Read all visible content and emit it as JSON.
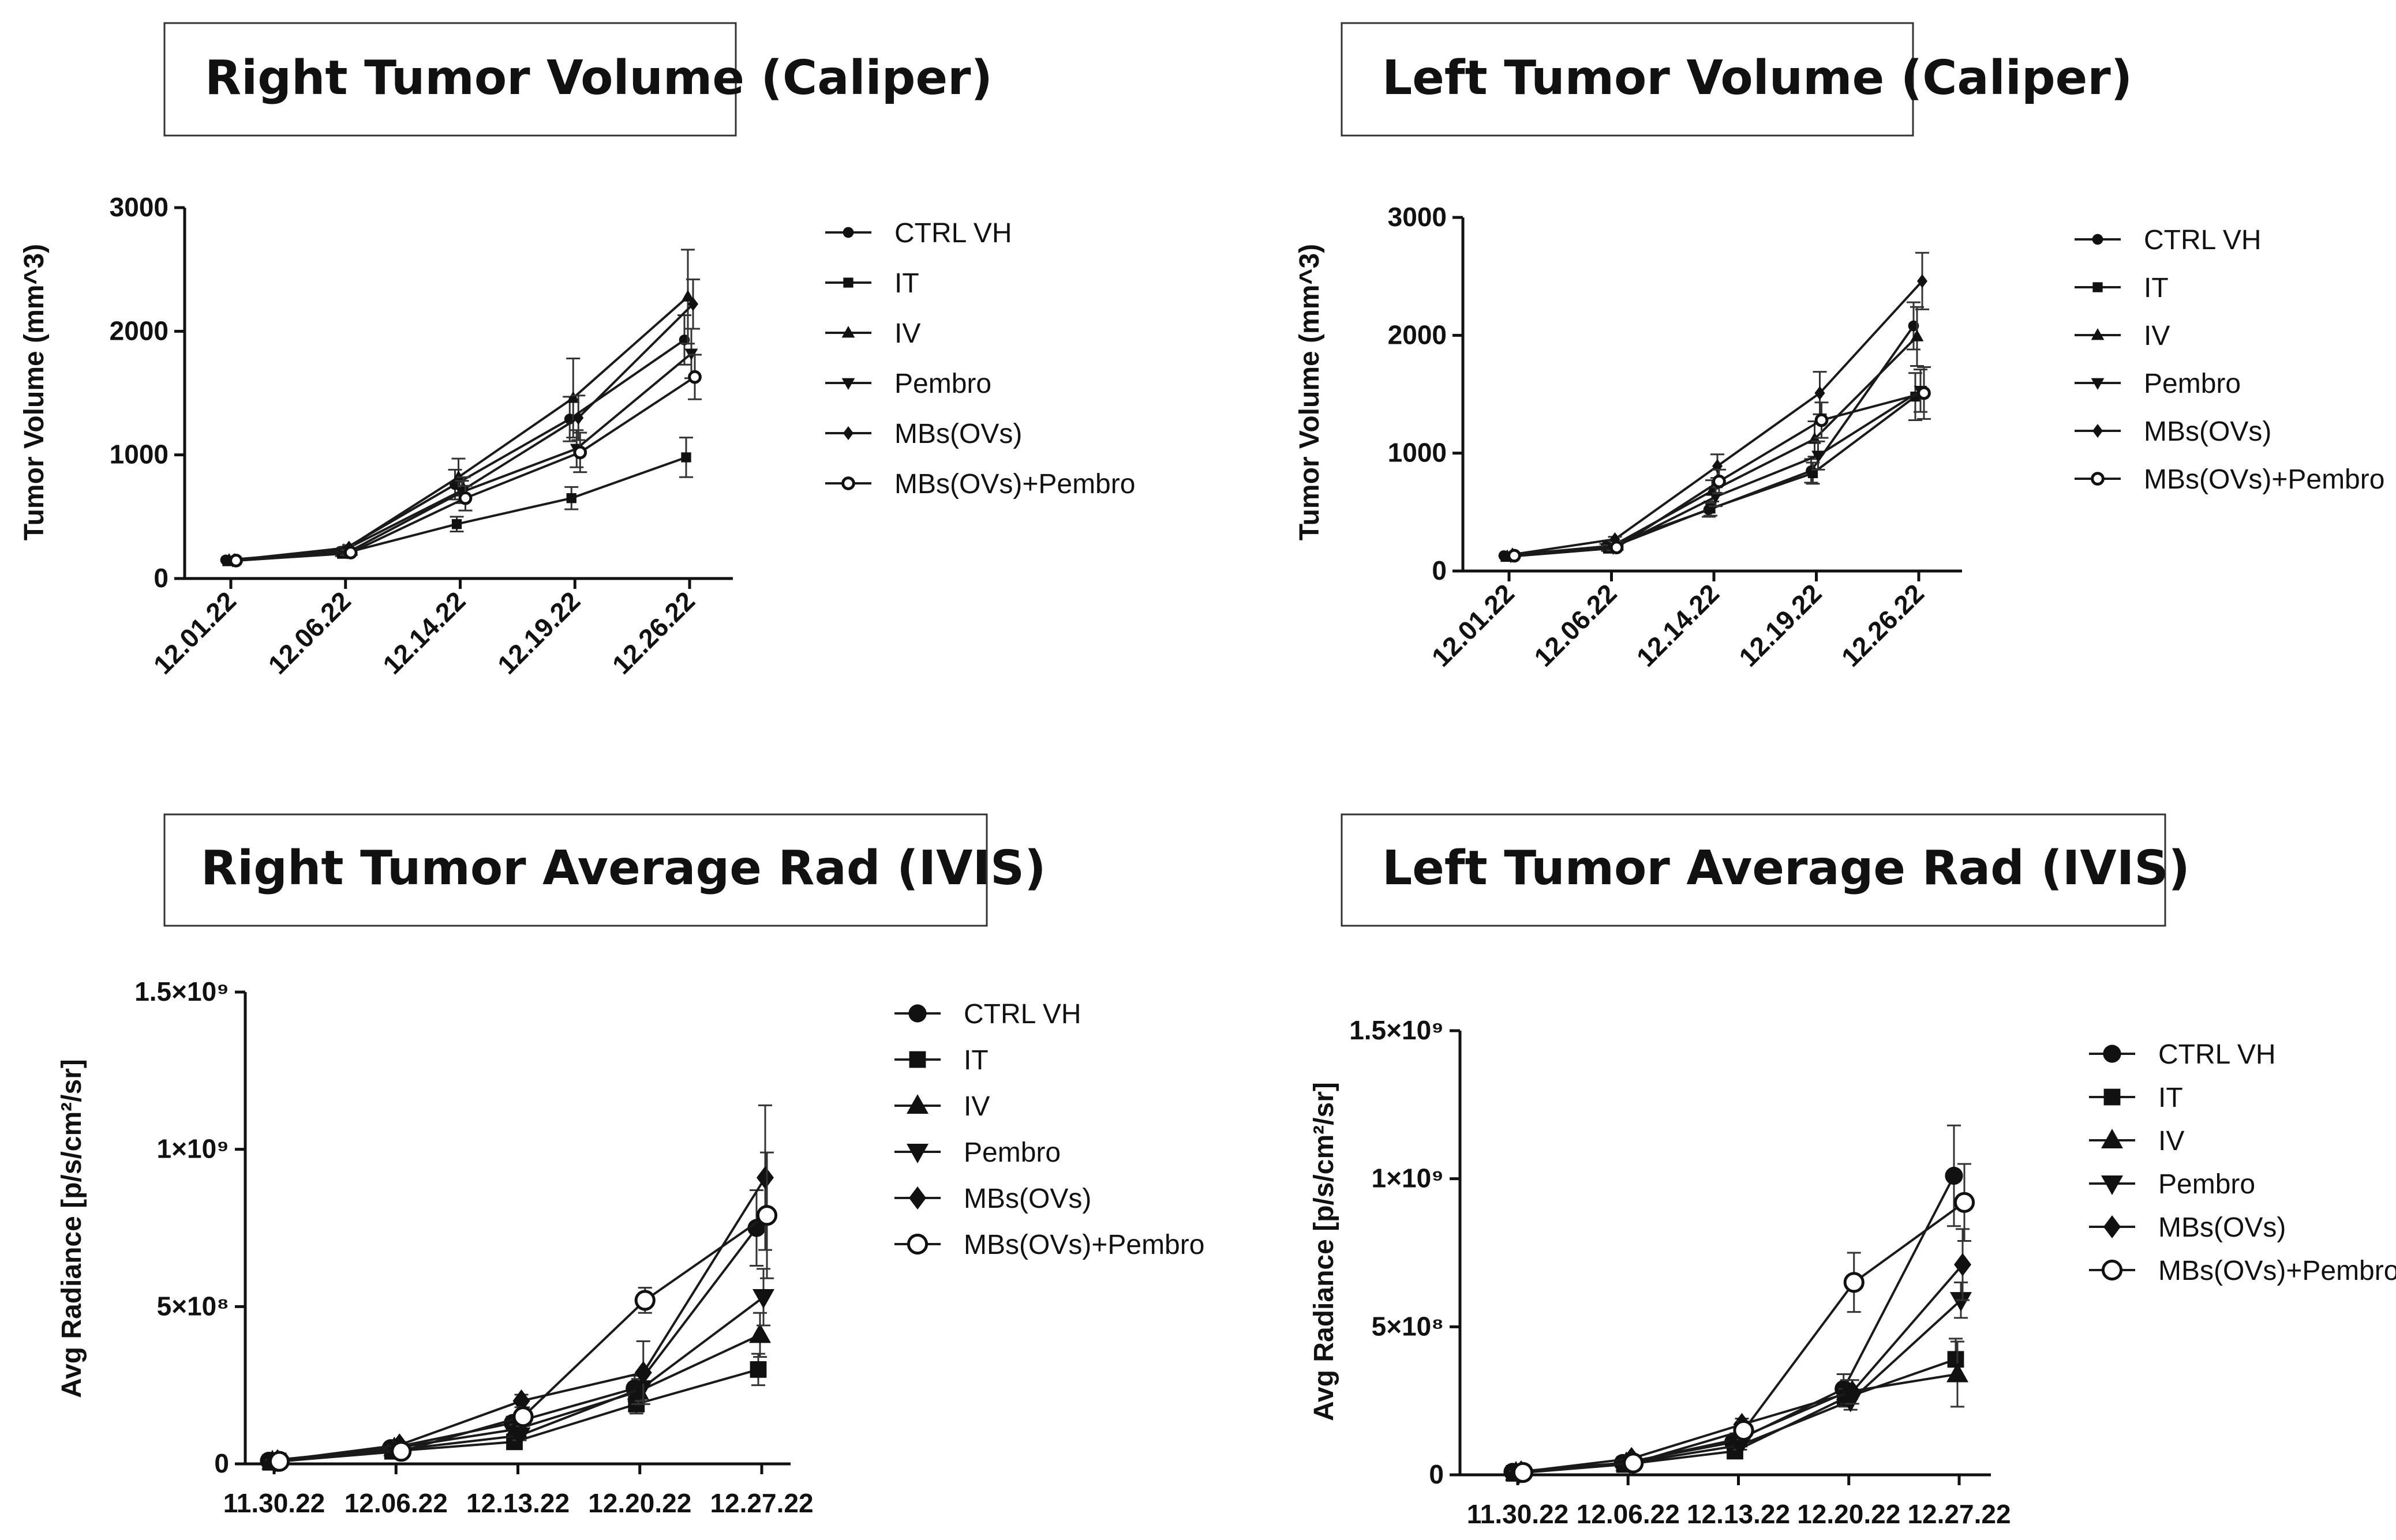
{
  "chart_data": [
    {
      "type": "line",
      "title": "Right Tumor Volume (Caliper)",
      "xlabel": "",
      "ylabel": "Tumor Volume (mm^3)",
      "ylim": [
        0,
        3000
      ],
      "categories": [
        "12.01.22",
        "12.06.22",
        "12.14.22",
        "12.19.22",
        "12.26.22"
      ],
      "yticks": [
        "0",
        "1000",
        "2000",
        "3000"
      ],
      "ytick_values": [
        0,
        1000,
        2000,
        3000
      ],
      "legend_position": "right",
      "series": [
        {
          "name": "CTRL VH",
          "marker": "circle",
          "values": [
            150,
            220,
            760,
            1290,
            1930
          ],
          "errors": [
            0,
            20,
            120,
            180,
            200
          ]
        },
        {
          "name": "IT",
          "marker": "square",
          "values": [
            140,
            200,
            440,
            650,
            980
          ],
          "errors": [
            0,
            20,
            60,
            90,
            160
          ]
        },
        {
          "name": "IV",
          "marker": "triangle-up",
          "values": [
            150,
            230,
            820,
            1460,
            2280
          ],
          "errors": [
            0,
            20,
            150,
            320,
            380
          ]
        },
        {
          "name": "Pembro",
          "marker": "triangle-down",
          "values": [
            145,
            210,
            700,
            1050,
            1820
          ],
          "errors": [
            0,
            20,
            90,
            150,
            200
          ]
        },
        {
          "name": "MBs(OVs)",
          "marker": "diamond",
          "values": [
            150,
            250,
            720,
            1300,
            2220
          ],
          "errors": [
            0,
            20,
            100,
            180,
            200
          ]
        },
        {
          "name": "MBs(OVs)+Pembro",
          "marker": "open-circle",
          "values": [
            145,
            210,
            650,
            1020,
            1630
          ],
          "errors": [
            0,
            20,
            100,
            160,
            180
          ]
        }
      ]
    },
    {
      "type": "line",
      "title": "Left Tumor Volume (Caliper)",
      "xlabel": "",
      "ylabel": "Tumor Volume (mm^3)",
      "ylim": [
        0,
        3000
      ],
      "categories": [
        "12.01.22",
        "12.06.22",
        "12.14.22",
        "12.19.22",
        "12.26.22"
      ],
      "yticks": [
        "0",
        "1000",
        "2000",
        "3000"
      ],
      "ytick_values": [
        0,
        1000,
        2000,
        3000
      ],
      "legend_position": "right",
      "series": [
        {
          "name": "CTRL VH",
          "marker": "circle",
          "values": [
            130,
            210,
            520,
            850,
            2080
          ],
          "errors": [
            0,
            20,
            60,
            100,
            200
          ]
        },
        {
          "name": "IT",
          "marker": "square",
          "values": [
            120,
            190,
            530,
            830,
            1480
          ],
          "errors": [
            0,
            20,
            60,
            90,
            200
          ]
        },
        {
          "name": "IV",
          "marker": "triangle-up",
          "values": [
            125,
            200,
            680,
            1120,
            1990
          ],
          "errors": [
            0,
            20,
            90,
            150,
            250
          ]
        },
        {
          "name": "Pembro",
          "marker": "triangle-down",
          "values": [
            125,
            195,
            630,
            980,
            1530
          ],
          "errors": [
            0,
            20,
            80,
            120,
            180
          ]
        },
        {
          "name": "MBs(OVs)",
          "marker": "diamond",
          "values": [
            140,
            270,
            890,
            1510,
            2460
          ],
          "errors": [
            0,
            20,
            100,
            180,
            240
          ]
        },
        {
          "name": "MBs(OVs)+Pembro",
          "marker": "open-circle",
          "values": [
            130,
            200,
            760,
            1280,
            1510
          ],
          "errors": [
            0,
            20,
            100,
            150,
            220
          ]
        }
      ]
    },
    {
      "type": "line",
      "title": "Right Tumor Average Rad (IVIS)",
      "xlabel": "",
      "ylabel": "Avg Radiance [p/s/cm²/sr]",
      "ylim": [
        0,
        1500000000
      ],
      "categories": [
        "11.30.22",
        "12.06.22",
        "12.13.22",
        "12.20.22",
        "12.27.22"
      ],
      "yticks": [
        "0",
        "5×10⁸",
        "1×10⁹",
        "1.5×10⁹"
      ],
      "ytick_values": [
        0,
        500000000,
        1000000000,
        1500000000
      ],
      "legend_position": "right",
      "series": [
        {
          "name": "CTRL VH",
          "marker": "circle",
          "values": [
            10000000,
            50000000,
            130000000,
            240000000,
            750000000
          ],
          "errors": [
            10000000,
            10000000,
            20000000,
            40000000,
            120000000
          ]
        },
        {
          "name": "IT",
          "marker": "square",
          "values": [
            5000000,
            40000000,
            70000000,
            190000000,
            300000000
          ],
          "errors": [
            5000000,
            10000000,
            15000000,
            30000000,
            50000000
          ]
        },
        {
          "name": "IV",
          "marker": "triangle-up",
          "values": [
            8000000,
            50000000,
            110000000,
            230000000,
            410000000
          ],
          "errors": [
            5000000,
            10000000,
            15000000,
            40000000,
            70000000
          ]
        },
        {
          "name": "Pembro",
          "marker": "triangle-down",
          "values": [
            10000000,
            45000000,
            90000000,
            240000000,
            530000000
          ],
          "errors": [
            5000000,
            10000000,
            15000000,
            40000000,
            90000000
          ]
        },
        {
          "name": "MBs(OVs)",
          "marker": "diamond",
          "values": [
            10000000,
            60000000,
            200000000,
            290000000,
            910000000
          ],
          "errors": [
            5000000,
            10000000,
            20000000,
            100000000,
            230000000
          ]
        },
        {
          "name": "MBs(OVs)+Pembro",
          "marker": "open-circle",
          "values": [
            8000000,
            40000000,
            150000000,
            520000000,
            790000000
          ],
          "errors": [
            5000000,
            10000000,
            30000000,
            40000000,
            200000000
          ]
        }
      ]
    },
    {
      "type": "line",
      "title": "Left Tumor Average Rad (IVIS)",
      "xlabel": "",
      "ylabel": "Avg Radiance [p/s/cm²/sr]",
      "ylim": [
        0,
        1500000000
      ],
      "categories": [
        "11.30.22",
        "12.06.22",
        "12.13.22",
        "12.20.22",
        "12.27.22"
      ],
      "yticks": [
        "0",
        "5×10⁸",
        "1×10⁹",
        "1.5×10⁹"
      ],
      "ytick_values": [
        0,
        500000000,
        1000000000,
        1500000000
      ],
      "legend_position": "right",
      "series": [
        {
          "name": "CTRL VH",
          "marker": "circle",
          "values": [
            10000000,
            40000000,
            110000000,
            290000000,
            1010000000
          ],
          "errors": [
            5000000,
            10000000,
            20000000,
            50000000,
            170000000
          ]
        },
        {
          "name": "IT",
          "marker": "square",
          "values": [
            5000000,
            35000000,
            80000000,
            260000000,
            390000000
          ],
          "errors": [
            5000000,
            10000000,
            15000000,
            30000000,
            70000000
          ]
        },
        {
          "name": "IV",
          "marker": "triangle-up",
          "values": [
            8000000,
            40000000,
            120000000,
            280000000,
            340000000
          ],
          "errors": [
            5000000,
            10000000,
            20000000,
            40000000,
            110000000
          ]
        },
        {
          "name": "Pembro",
          "marker": "triangle-down",
          "values": [
            8000000,
            40000000,
            100000000,
            250000000,
            590000000
          ],
          "errors": [
            5000000,
            10000000,
            15000000,
            30000000,
            60000000
          ]
        },
        {
          "name": "MBs(OVs)",
          "marker": "diamond",
          "values": [
            10000000,
            55000000,
            170000000,
            280000000,
            710000000
          ],
          "errors": [
            5000000,
            10000000,
            20000000,
            40000000,
            120000000
          ]
        },
        {
          "name": "MBs(OVs)+Pembro",
          "marker": "open-circle",
          "values": [
            8000000,
            40000000,
            150000000,
            650000000,
            920000000
          ],
          "errors": [
            5000000,
            10000000,
            30000000,
            100000000,
            130000000
          ]
        }
      ]
    }
  ]
}
